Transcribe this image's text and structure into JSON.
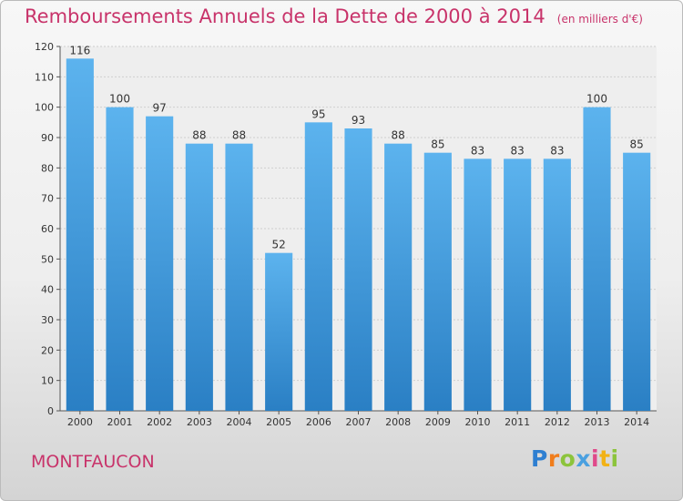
{
  "chart_data": {
    "type": "bar",
    "title": "Remboursements Annuels de la Dette de 2000 à 2014",
    "subtitle": "(en milliers d'€)",
    "categories": [
      "2000",
      "2001",
      "2002",
      "2003",
      "2004",
      "2005",
      "2006",
      "2007",
      "2008",
      "2009",
      "2010",
      "2011",
      "2012",
      "2013",
      "2014"
    ],
    "values": [
      116,
      100,
      97,
      88,
      88,
      52,
      95,
      93,
      88,
      85,
      83,
      83,
      83,
      100,
      85
    ],
    "ylim": [
      0,
      120
    ],
    "yticks": [
      0,
      10,
      20,
      30,
      40,
      50,
      60,
      70,
      80,
      90,
      100,
      110,
      120
    ],
    "grid": true,
    "bar_color": "#4ea6e6"
  },
  "footer": {
    "commune": "MONTFAUCON",
    "brand": "Proxiti",
    "brand_colors": [
      "#2e7fd1",
      "#f07d1c",
      "#8cc43c",
      "#4aa0e0",
      "#e04a8a",
      "#f2b215",
      "#8cc43c"
    ]
  }
}
